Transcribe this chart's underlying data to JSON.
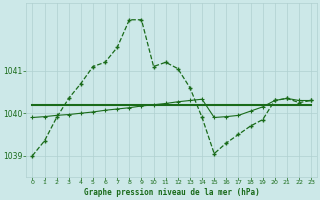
{
  "bg_color": "#cce8e8",
  "grid_color": "#b0d0d0",
  "line_color": "#1a6b1a",
  "title": "Graphe pression niveau de la mer (hPa)",
  "xlim": [
    -0.5,
    23.5
  ],
  "ylim": [
    1038.5,
    1042.6
  ],
  "yticks": [
    1039,
    1040,
    1041
  ],
  "xticks": [
    0,
    1,
    2,
    3,
    4,
    5,
    6,
    7,
    8,
    9,
    10,
    11,
    12,
    13,
    14,
    15,
    16,
    17,
    18,
    19,
    20,
    21,
    22,
    23
  ],
  "curve1_x": [
    0,
    1,
    2,
    3,
    4,
    5,
    6,
    7,
    8,
    9,
    10,
    11,
    12,
    13,
    14,
    15,
    16,
    17,
    18,
    19,
    20,
    21,
    22,
    23
  ],
  "curve1_y": [
    1039.0,
    1039.35,
    1039.9,
    1040.35,
    1040.7,
    1041.1,
    1041.2,
    1041.55,
    1042.2,
    1042.2,
    1041.1,
    1041.2,
    1041.05,
    1040.6,
    1039.9,
    1039.05,
    1039.3,
    1039.5,
    1039.7,
    1039.85,
    1040.3,
    1040.35,
    1040.25,
    1040.3
  ],
  "curve2_x": [
    0,
    23
  ],
  "curve2_y": [
    1040.2,
    1040.2
  ],
  "curve3_x": [
    0,
    1,
    2,
    3,
    4,
    5,
    6,
    7,
    8,
    9,
    10,
    11,
    12,
    13,
    14,
    15,
    16,
    17,
    18,
    19,
    20,
    21,
    22,
    23
  ],
  "curve3_y": [
    1039.9,
    1039.92,
    1039.95,
    1039.97,
    1040.0,
    1040.03,
    1040.07,
    1040.1,
    1040.13,
    1040.17,
    1040.2,
    1040.23,
    1040.27,
    1040.3,
    1040.33,
    1039.9,
    1039.92,
    1039.95,
    1040.05,
    1040.15,
    1040.3,
    1040.35,
    1040.3,
    1040.3
  ]
}
